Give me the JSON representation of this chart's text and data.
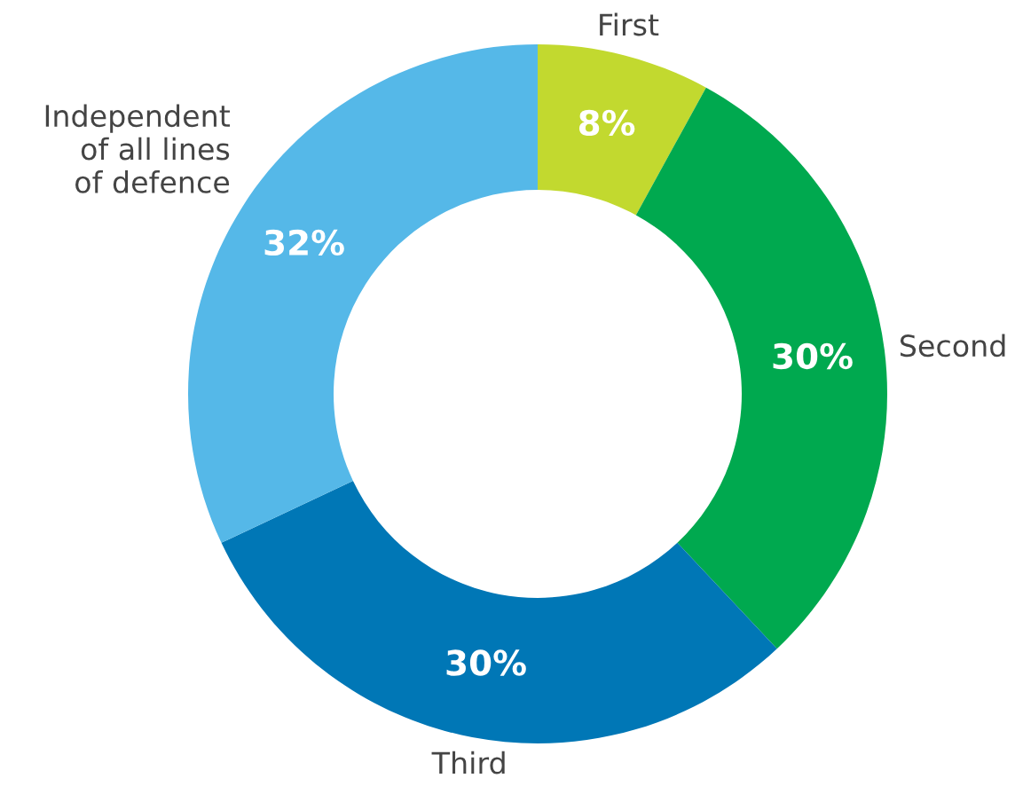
{
  "chart_data": {
    "type": "donut",
    "categories": [
      "First",
      "Second",
      "Third",
      "Independent\nof all lines\nof defence"
    ],
    "values": [
      8,
      30,
      30,
      32
    ],
    "colors": [
      "#c2d92f",
      "#00a94f",
      "#0077b6",
      "#55b8e8"
    ],
    "value_labels": [
      "8%",
      "30%",
      "30%",
      "32%"
    ],
    "legend": false
  }
}
